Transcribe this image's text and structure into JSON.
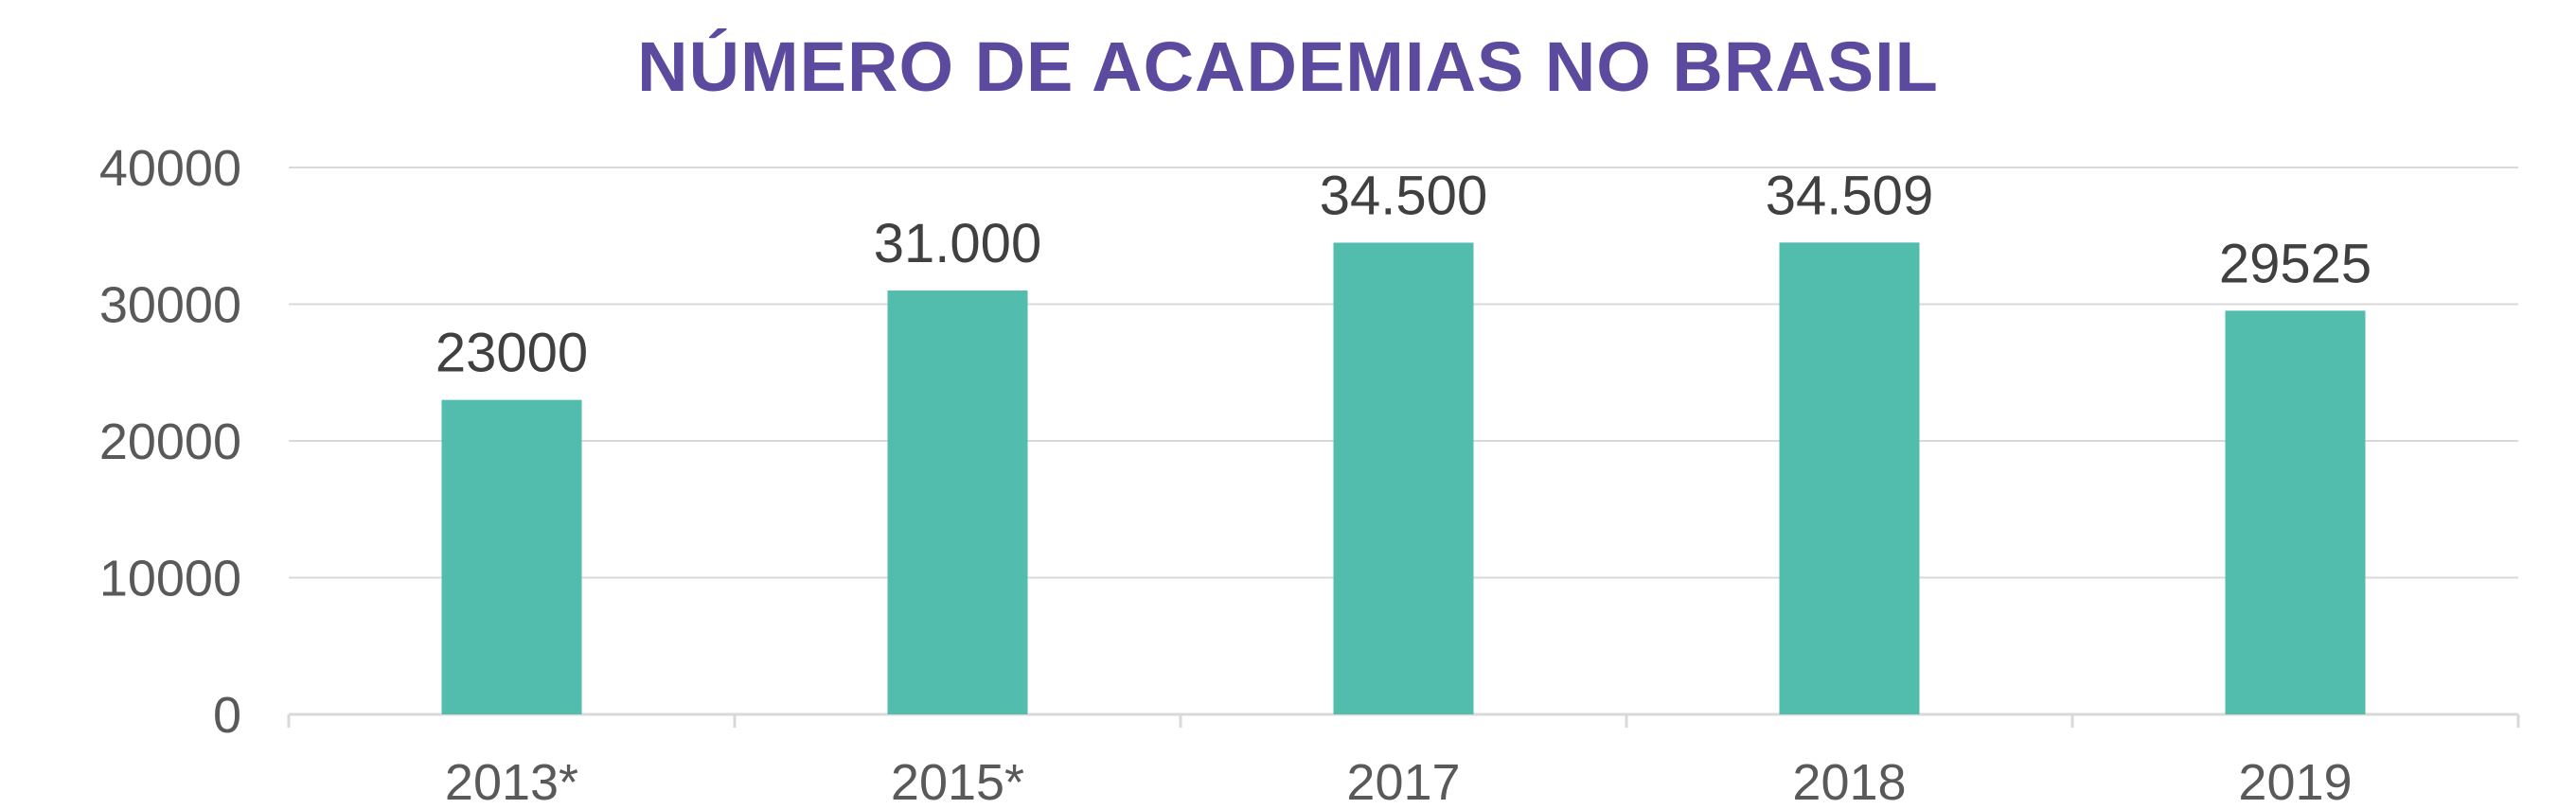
{
  "chart_data": {
    "type": "bar",
    "title": "NÚMERO DE ACADEMIAS NO BRASIL",
    "categories": [
      "2013*",
      "2015*",
      "2017",
      "2018",
      "2019"
    ],
    "values": [
      23000,
      31000,
      34500,
      34509,
      29525
    ],
    "data_labels": [
      "23000",
      "31.000",
      "34.500",
      "34.509",
      "29525"
    ],
    "yticks": [
      "0",
      "10000",
      "20000",
      "30000",
      "40000"
    ],
    "ylim": [
      0,
      40000
    ],
    "xlabel": "",
    "ylabel": "",
    "grid": true,
    "legend": "none",
    "colors": {
      "bar": "#52bcad",
      "title": "#5b4a9e",
      "grid": "#d9d9d9",
      "axis_text": "#595959",
      "label_text": "#404040"
    }
  }
}
